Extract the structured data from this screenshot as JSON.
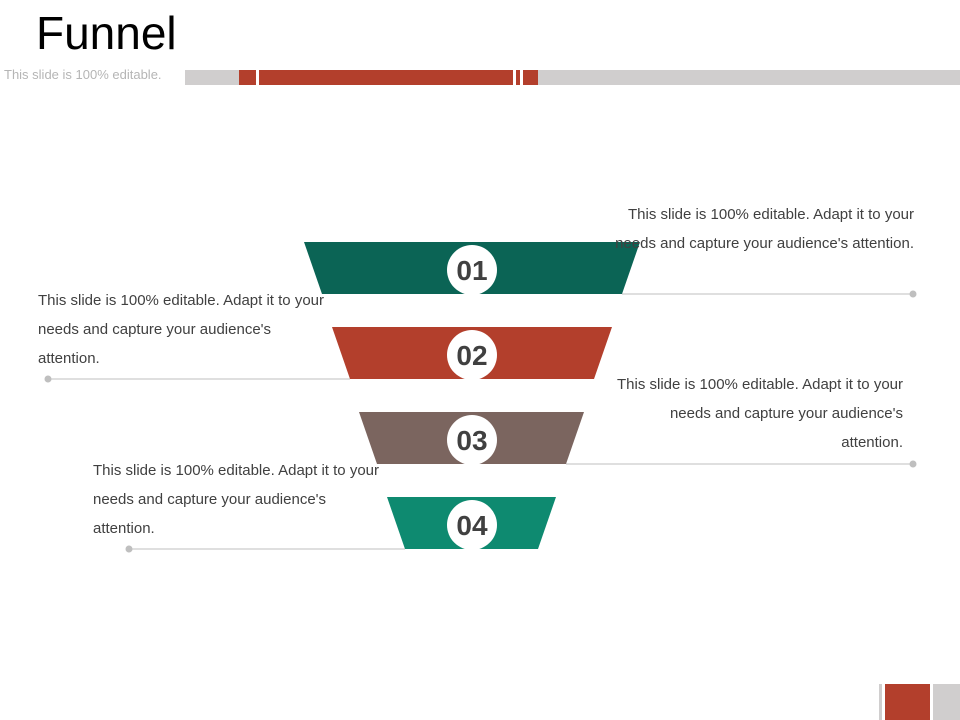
{
  "slide": {
    "title": "Funnel",
    "subtitle": "This slide is 100% editable."
  },
  "colors": {
    "accent": "#b33f2c",
    "track": "#d0cece",
    "connector": "#bfbfbf"
  },
  "funnel": {
    "steps": [
      {
        "number": "01",
        "color": "#0b6455",
        "text": "This slide is 100% editable. Adapt it to your needs and capture your audience's attention.",
        "text_side": "right"
      },
      {
        "number": "02",
        "color": "#b33f2c",
        "text": "This slide is 100% editable. Adapt it to your needs and capture your audience's attention.",
        "text_side": "left"
      },
      {
        "number": "03",
        "color": "#7b655f",
        "text": "This slide is 100% editable. Adapt it to your needs and capture your audience's attention.",
        "text_side": "right"
      },
      {
        "number": "04",
        "color": "#0e8a70",
        "text": "This slide is 100% editable. Adapt it to your needs and capture your audience's attention.",
        "text_side": "left"
      }
    ]
  }
}
